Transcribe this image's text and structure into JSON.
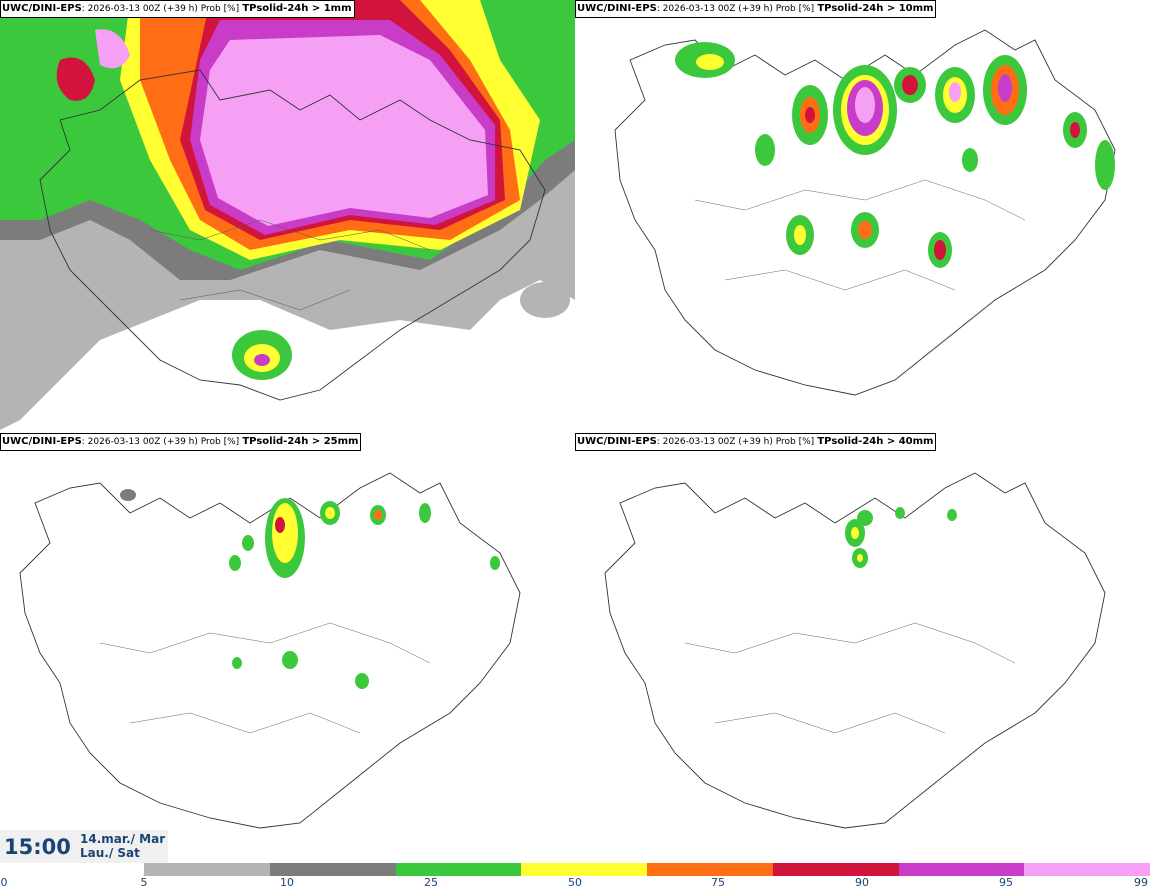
{
  "panels": [
    {
      "model": "UWC/DINI-EPS",
      "meta": ": 2026-03-13 00Z (+39 h) Prob [%]",
      "variable": "TPsolid-24h > 1mm"
    },
    {
      "model": "UWC/DINI-EPS",
      "meta": ": 2026-03-13 00Z (+39 h) Prob [%]",
      "variable": "TPsolid-24h > 10mm"
    },
    {
      "model": "UWC/DINI-EPS",
      "meta": ": 2026-03-13 00Z (+39 h) Prob [%]",
      "variable": "TPsolid-24h > 25mm"
    },
    {
      "model": "UWC/DINI-EPS",
      "meta": ": 2026-03-13 00Z (+39 h) Prob [%]",
      "variable": "TPsolid-24h > 40mm"
    }
  ],
  "valid_time": {
    "time": "15:00",
    "date_line1": "14.mar./ Mar",
    "date_line2": "Lau./ Sat"
  },
  "colorbar": {
    "ticks": [
      "0",
      "5",
      "10",
      "25",
      "50",
      "75",
      "90",
      "95",
      "99"
    ],
    "colors": [
      "#b4b4b4",
      "#7c7c7c",
      "#3cc83c",
      "#ffff32",
      "#ff6e14",
      "#d2143c",
      "#c83cc8",
      "#f5a0f5"
    ]
  },
  "legend_colors": {
    "p5": "#b4b4b4",
    "p10": "#7c7c7c",
    "p25": "#3cc83c",
    "p50": "#ffff32",
    "p75": "#ff6e14",
    "p90": "#d2143c",
    "p95": "#c83cc8",
    "p99": "#f5a0f5"
  }
}
